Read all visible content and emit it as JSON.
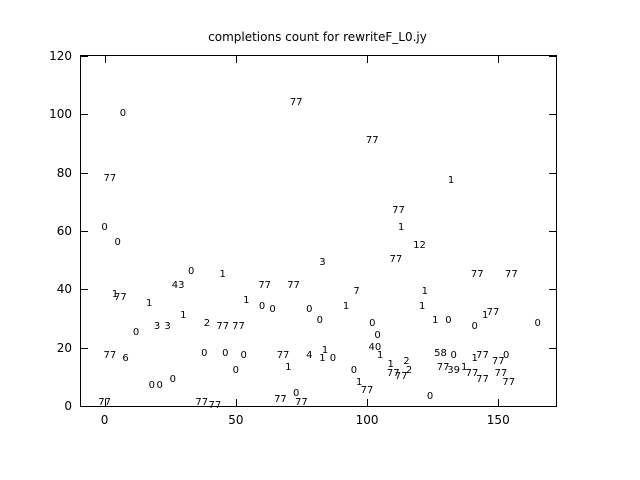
{
  "title": "completions count for rewriteF_L0.jy",
  "colors": {
    "background": "#ffffff",
    "axis": "#000000",
    "text": "#000000"
  },
  "chart_data": {
    "type": "scatter",
    "title": "completions count for rewriteF_L0.jy",
    "xlabel": "",
    "ylabel": "",
    "xlim": [
      -9,
      172
    ],
    "ylim": [
      0,
      120
    ],
    "x_ticks": [
      0,
      50,
      100,
      150
    ],
    "y_ticks": [
      0,
      20,
      40,
      60,
      80,
      100,
      120
    ],
    "grid": false,
    "legend": false,
    "marker": "text-label",
    "points": [
      {
        "x": 0,
        "y": 61,
        "label": "0"
      },
      {
        "x": 2,
        "y": 78,
        "label": "77"
      },
      {
        "x": 0,
        "y": 1,
        "label": "77"
      },
      {
        "x": 2,
        "y": 17,
        "label": "77"
      },
      {
        "x": 8,
        "y": 16,
        "label": "6"
      },
      {
        "x": 4,
        "y": 38,
        "label": "1"
      },
      {
        "x": 6,
        "y": 37,
        "label": "77"
      },
      {
        "x": 5,
        "y": 56,
        "label": "0"
      },
      {
        "x": 7,
        "y": 100,
        "label": "0"
      },
      {
        "x": 12,
        "y": 25,
        "label": "0"
      },
      {
        "x": 17,
        "y": 35,
        "label": "1"
      },
      {
        "x": 18,
        "y": 7,
        "label": "0"
      },
      {
        "x": 21,
        "y": 7,
        "label": "0"
      },
      {
        "x": 20,
        "y": 27,
        "label": "3"
      },
      {
        "x": 24,
        "y": 27,
        "label": "3"
      },
      {
        "x": 26,
        "y": 9,
        "label": "0"
      },
      {
        "x": 28,
        "y": 41,
        "label": "43"
      },
      {
        "x": 30,
        "y": 31,
        "label": "1"
      },
      {
        "x": 33,
        "y": 46,
        "label": "0"
      },
      {
        "x": 37,
        "y": 1,
        "label": "77"
      },
      {
        "x": 39,
        "y": 28,
        "label": "2"
      },
      {
        "x": 38,
        "y": 18,
        "label": "0"
      },
      {
        "x": 42,
        "y": 0,
        "label": "77"
      },
      {
        "x": 45,
        "y": 45,
        "label": "1"
      },
      {
        "x": 45,
        "y": 27,
        "label": "77"
      },
      {
        "x": 51,
        "y": 27,
        "label": "77"
      },
      {
        "x": 46,
        "y": 18,
        "label": "0"
      },
      {
        "x": 50,
        "y": 12,
        "label": "0"
      },
      {
        "x": 53,
        "y": 17,
        "label": "0"
      },
      {
        "x": 54,
        "y": 36,
        "label": "1"
      },
      {
        "x": 61,
        "y": 41,
        "label": "77"
      },
      {
        "x": 60,
        "y": 34,
        "label": "0"
      },
      {
        "x": 64,
        "y": 33,
        "label": "0"
      },
      {
        "x": 67,
        "y": 2,
        "label": "77"
      },
      {
        "x": 72,
        "y": 41,
        "label": "77"
      },
      {
        "x": 73,
        "y": 104,
        "label": "77"
      },
      {
        "x": 73,
        "y": 4,
        "label": "0"
      },
      {
        "x": 75,
        "y": 1,
        "label": "77"
      },
      {
        "x": 68,
        "y": 17,
        "label": "77"
      },
      {
        "x": 70,
        "y": 13,
        "label": "1"
      },
      {
        "x": 78,
        "y": 33,
        "label": "0"
      },
      {
        "x": 82,
        "y": 29,
        "label": "0"
      },
      {
        "x": 83,
        "y": 49,
        "label": "3"
      },
      {
        "x": 78,
        "y": 17,
        "label": "4"
      },
      {
        "x": 84,
        "y": 19,
        "label": "1"
      },
      {
        "x": 83,
        "y": 16,
        "label": "1"
      },
      {
        "x": 87,
        "y": 16,
        "label": "0"
      },
      {
        "x": 92,
        "y": 34,
        "label": "1"
      },
      {
        "x": 96,
        "y": 39,
        "label": "7"
      },
      {
        "x": 95,
        "y": 12,
        "label": "0"
      },
      {
        "x": 97,
        "y": 8,
        "label": "1"
      },
      {
        "x": 100,
        "y": 5,
        "label": "77"
      },
      {
        "x": 102,
        "y": 91,
        "label": "77"
      },
      {
        "x": 102,
        "y": 28,
        "label": "0"
      },
      {
        "x": 104,
        "y": 24,
        "label": "0"
      },
      {
        "x": 103,
        "y": 20,
        "label": "40"
      },
      {
        "x": 105,
        "y": 17,
        "label": "1"
      },
      {
        "x": 109,
        "y": 14,
        "label": "1"
      },
      {
        "x": 110,
        "y": 11,
        "label": "77"
      },
      {
        "x": 112,
        "y": 67,
        "label": "77"
      },
      {
        "x": 113,
        "y": 61,
        "label": "1"
      },
      {
        "x": 111,
        "y": 50,
        "label": "77"
      },
      {
        "x": 115,
        "y": 15,
        "label": "2"
      },
      {
        "x": 116,
        "y": 12,
        "label": "2"
      },
      {
        "x": 113,
        "y": 10,
        "label": "77"
      },
      {
        "x": 120,
        "y": 55,
        "label": "12"
      },
      {
        "x": 122,
        "y": 39,
        "label": "1"
      },
      {
        "x": 121,
        "y": 34,
        "label": "1"
      },
      {
        "x": 124,
        "y": 3,
        "label": "0"
      },
      {
        "x": 126,
        "y": 29,
        "label": "1"
      },
      {
        "x": 131,
        "y": 29,
        "label": "0"
      },
      {
        "x": 132,
        "y": 77,
        "label": "1"
      },
      {
        "x": 128,
        "y": 18,
        "label": "58"
      },
      {
        "x": 133,
        "y": 17,
        "label": "0"
      },
      {
        "x": 129,
        "y": 13,
        "label": "77"
      },
      {
        "x": 133,
        "y": 12,
        "label": "39"
      },
      {
        "x": 137,
        "y": 13,
        "label": "1"
      },
      {
        "x": 141,
        "y": 27,
        "label": "0"
      },
      {
        "x": 142,
        "y": 45,
        "label": "77"
      },
      {
        "x": 145,
        "y": 31,
        "label": "1"
      },
      {
        "x": 148,
        "y": 32,
        "label": "77"
      },
      {
        "x": 141,
        "y": 16,
        "label": "1"
      },
      {
        "x": 144,
        "y": 17,
        "label": "77"
      },
      {
        "x": 140,
        "y": 11,
        "label": "77"
      },
      {
        "x": 144,
        "y": 9,
        "label": "77"
      },
      {
        "x": 150,
        "y": 15,
        "label": "77"
      },
      {
        "x": 153,
        "y": 17,
        "label": "0"
      },
      {
        "x": 151,
        "y": 11,
        "label": "77"
      },
      {
        "x": 154,
        "y": 8,
        "label": "77"
      },
      {
        "x": 155,
        "y": 45,
        "label": "77"
      },
      {
        "x": 165,
        "y": 28,
        "label": "0"
      }
    ]
  }
}
